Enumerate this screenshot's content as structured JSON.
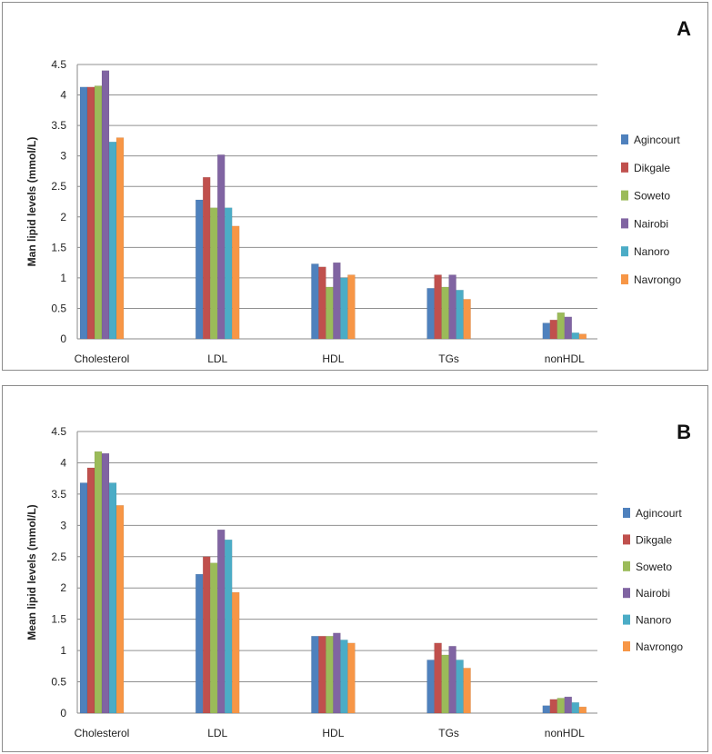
{
  "chart_data": [
    {
      "type": "bar",
      "panel_label": "A",
      "title": "",
      "xlabel": "",
      "ylabel": "Man lipid  levels (mmol/L)",
      "ylim": [
        0,
        4.5
      ],
      "yticks": [
        "0",
        "0.5",
        "1",
        "1.5",
        "2",
        "2.5",
        "3",
        "3.5",
        "4",
        "4.5"
      ],
      "grid": true,
      "legend_position": "right",
      "categories": [
        "Cholesterol",
        "LDL",
        "HDL",
        "TGs",
        "nonHDL"
      ],
      "series": [
        {
          "name": "Agincourt",
          "color": "#4F81BD",
          "values": [
            4.13,
            2.28,
            1.23,
            0.83,
            0.26
          ]
        },
        {
          "name": "Dikgale",
          "color": "#C0504D",
          "values": [
            4.13,
            2.65,
            1.18,
            1.05,
            0.31
          ]
        },
        {
          "name": "Soweto",
          "color": "#9BBB59",
          "values": [
            4.15,
            2.15,
            0.85,
            0.85,
            0.43
          ]
        },
        {
          "name": "Nairobi",
          "color": "#8064A2",
          "values": [
            4.4,
            3.02,
            1.25,
            1.05,
            0.36
          ]
        },
        {
          "name": "Nanoro",
          "color": "#4BACC6",
          "values": [
            3.23,
            2.15,
            1.0,
            0.8,
            0.1
          ]
        },
        {
          "name": "Navrongo",
          "color": "#F79646",
          "values": [
            3.3,
            1.85,
            1.05,
            0.65,
            0.08
          ]
        }
      ]
    },
    {
      "type": "bar",
      "panel_label": "B",
      "title": "",
      "xlabel": "",
      "ylabel": "Mean lipid  levels (mmol/L)",
      "ylim": [
        0,
        4.5
      ],
      "yticks": [
        "0",
        "0.5",
        "1",
        "1.5",
        "2",
        "2.5",
        "3",
        "3.5",
        "4",
        "4.5"
      ],
      "grid": true,
      "legend_position": "right",
      "categories": [
        "Cholesterol",
        "LDL",
        "HDL",
        "TGs",
        "nonHDL"
      ],
      "series": [
        {
          "name": "Agincourt",
          "color": "#4F81BD",
          "values": [
            3.68,
            2.22,
            1.23,
            0.85,
            0.12
          ]
        },
        {
          "name": "Dikgale",
          "color": "#C0504D",
          "values": [
            3.92,
            2.5,
            1.23,
            1.12,
            0.22
          ]
        },
        {
          "name": "Soweto",
          "color": "#9BBB59",
          "values": [
            4.18,
            2.4,
            1.23,
            0.93,
            0.24
          ]
        },
        {
          "name": "Nairobi",
          "color": "#8064A2",
          "values": [
            4.15,
            2.93,
            1.28,
            1.07,
            0.26
          ]
        },
        {
          "name": "Nanoro",
          "color": "#4BACC6",
          "values": [
            3.68,
            2.77,
            1.17,
            0.85,
            0.17
          ]
        },
        {
          "name": "Navrongo",
          "color": "#F79646",
          "values": [
            3.32,
            1.93,
            1.12,
            0.72,
            0.1
          ]
        }
      ]
    }
  ]
}
